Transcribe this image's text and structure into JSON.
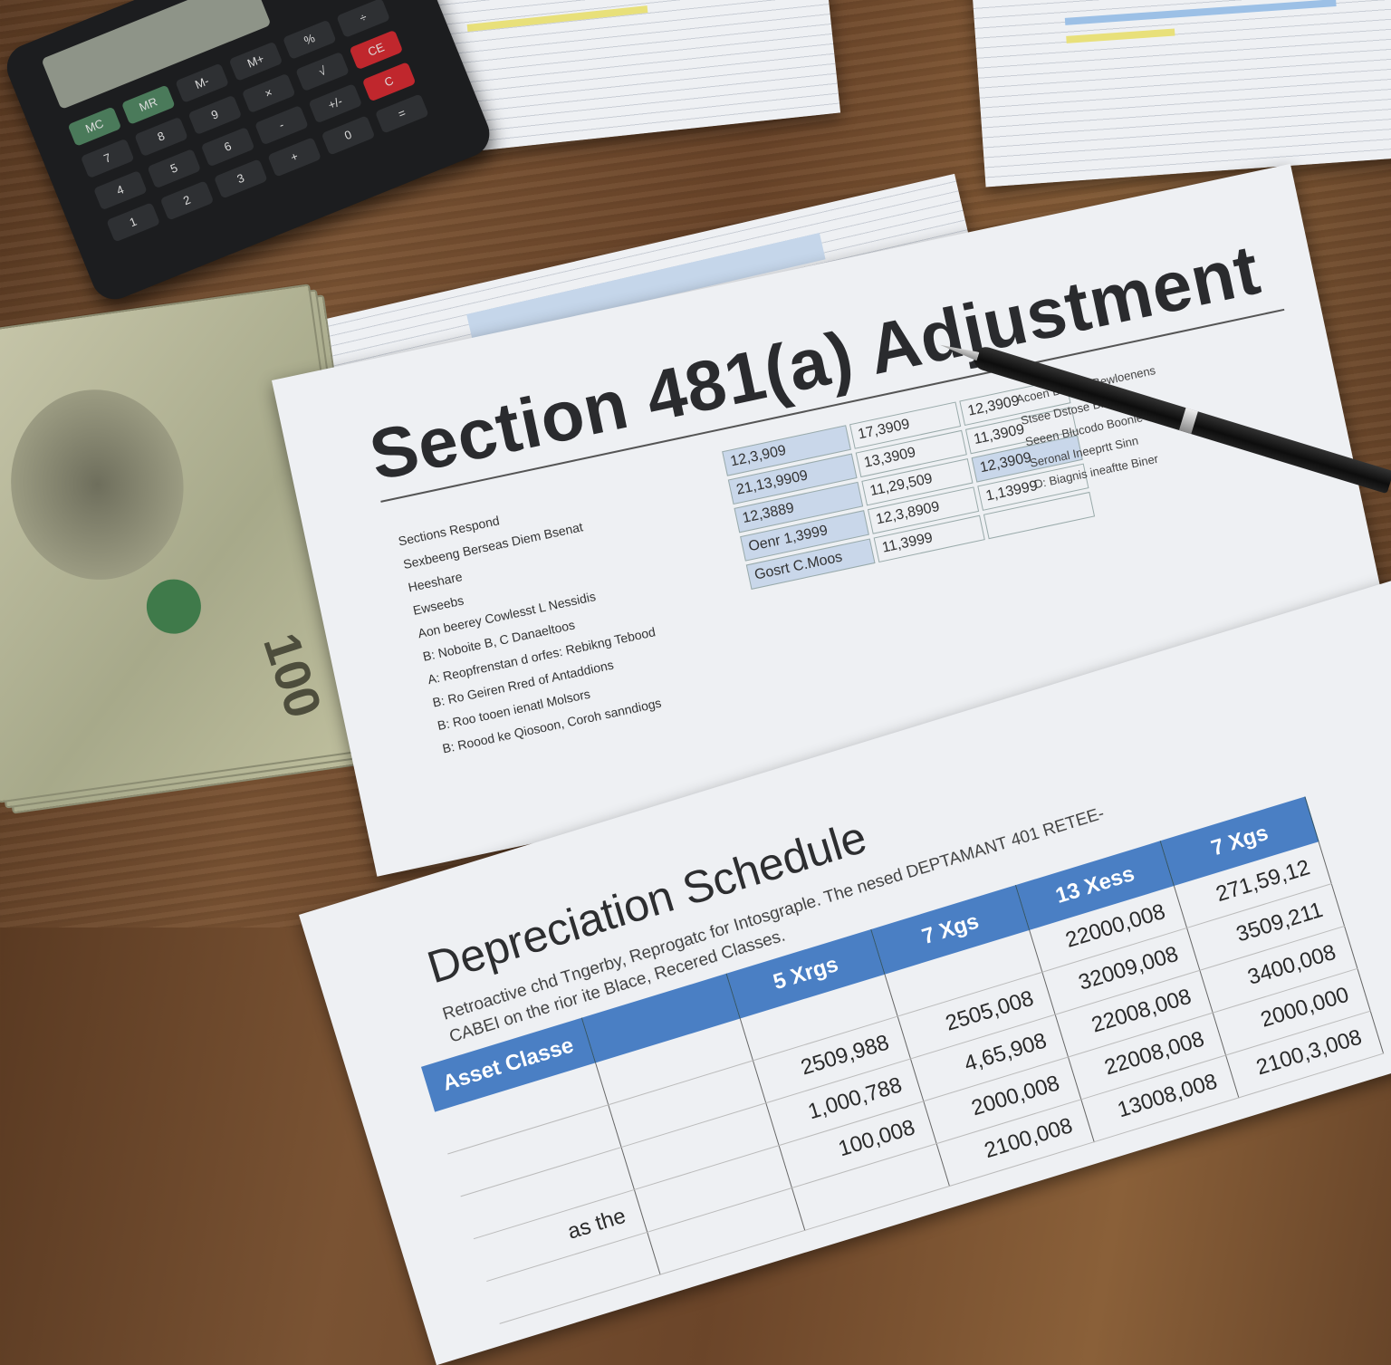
{
  "section_sheet": {
    "title": "Section 481(a) Adjustment",
    "items": [
      "Sections Respond",
      "Sexbeeng Berseas Diem Bsenat",
      "Heeshare",
      "Ewseebs",
      "Aon beerey Cowlesst L Nessidis",
      "B: Noboite B, C Danaeltoos",
      "A: Reopfrenstan d orfes: Rebikng Tebood",
      "B: Ro Geiren Rred of Antaddions",
      "B: Roo tooen ienatl Molsors",
      "B: Roood ke Qiosoon, Coroh sanndiogs"
    ],
    "numbers": [
      "12,3,909",
      "17,3909",
      "12,3909",
      "21,13,9909",
      "13,3909",
      "11,3909",
      "12,3889",
      "11,29,509",
      "12,3909",
      "Oenr 1,3999",
      "12,3,8909",
      "1,13999",
      "Gosrt C.Moos",
      "11,3999",
      ""
    ],
    "right_lines": [
      "Acoen Dotwlis Bewloenens",
      "Stsee Dstose Bnvaes",
      "Seeen Blucodo Boonie",
      "Seronal Ineeprtt Sinn",
      "D: Biagnis ineaftte Biner"
    ]
  },
  "depreciation_sheet": {
    "title": "Depreciation Schedule",
    "subtitle": "Retroactive chd Tngerby, Reprogatc for Intosgraple. The nesed DEPTAMANT 401 RETEE-CABEI on the rior ite Blace, Recered Classes.",
    "columns": [
      "Asset Classe",
      "",
      "5 Xrgs",
      "7 Xgs",
      "13 Xess",
      "7 Xgs"
    ],
    "rows": [
      [
        "",
        "",
        "",
        "",
        "22000,008",
        "271,59,12"
      ],
      [
        "",
        "",
        "2509,988",
        "2505,008",
        "32009,008",
        "3509,211"
      ],
      [
        "",
        "",
        "1,000,788",
        "4,65,908",
        "22008,008",
        "3400,008"
      ],
      [
        "as the",
        "",
        "100,008",
        "2000,008",
        "22008,008",
        "2000,000"
      ],
      [
        "",
        "",
        "",
        "2100,008",
        "13008,008",
        "2100,3,008"
      ]
    ]
  },
  "calculator": {
    "keys": [
      "MC",
      "MR",
      "M-",
      "M+",
      "%",
      "÷",
      "7",
      "8",
      "9",
      "×",
      "√",
      "CE",
      "4",
      "5",
      "6",
      "-",
      "+/-",
      "C",
      "1",
      "2",
      "3",
      "+",
      "0",
      "="
    ]
  },
  "money": {
    "denomination": "100"
  },
  "colors": {
    "table_header": "#4a7fc4",
    "wood": "#6b4529"
  }
}
